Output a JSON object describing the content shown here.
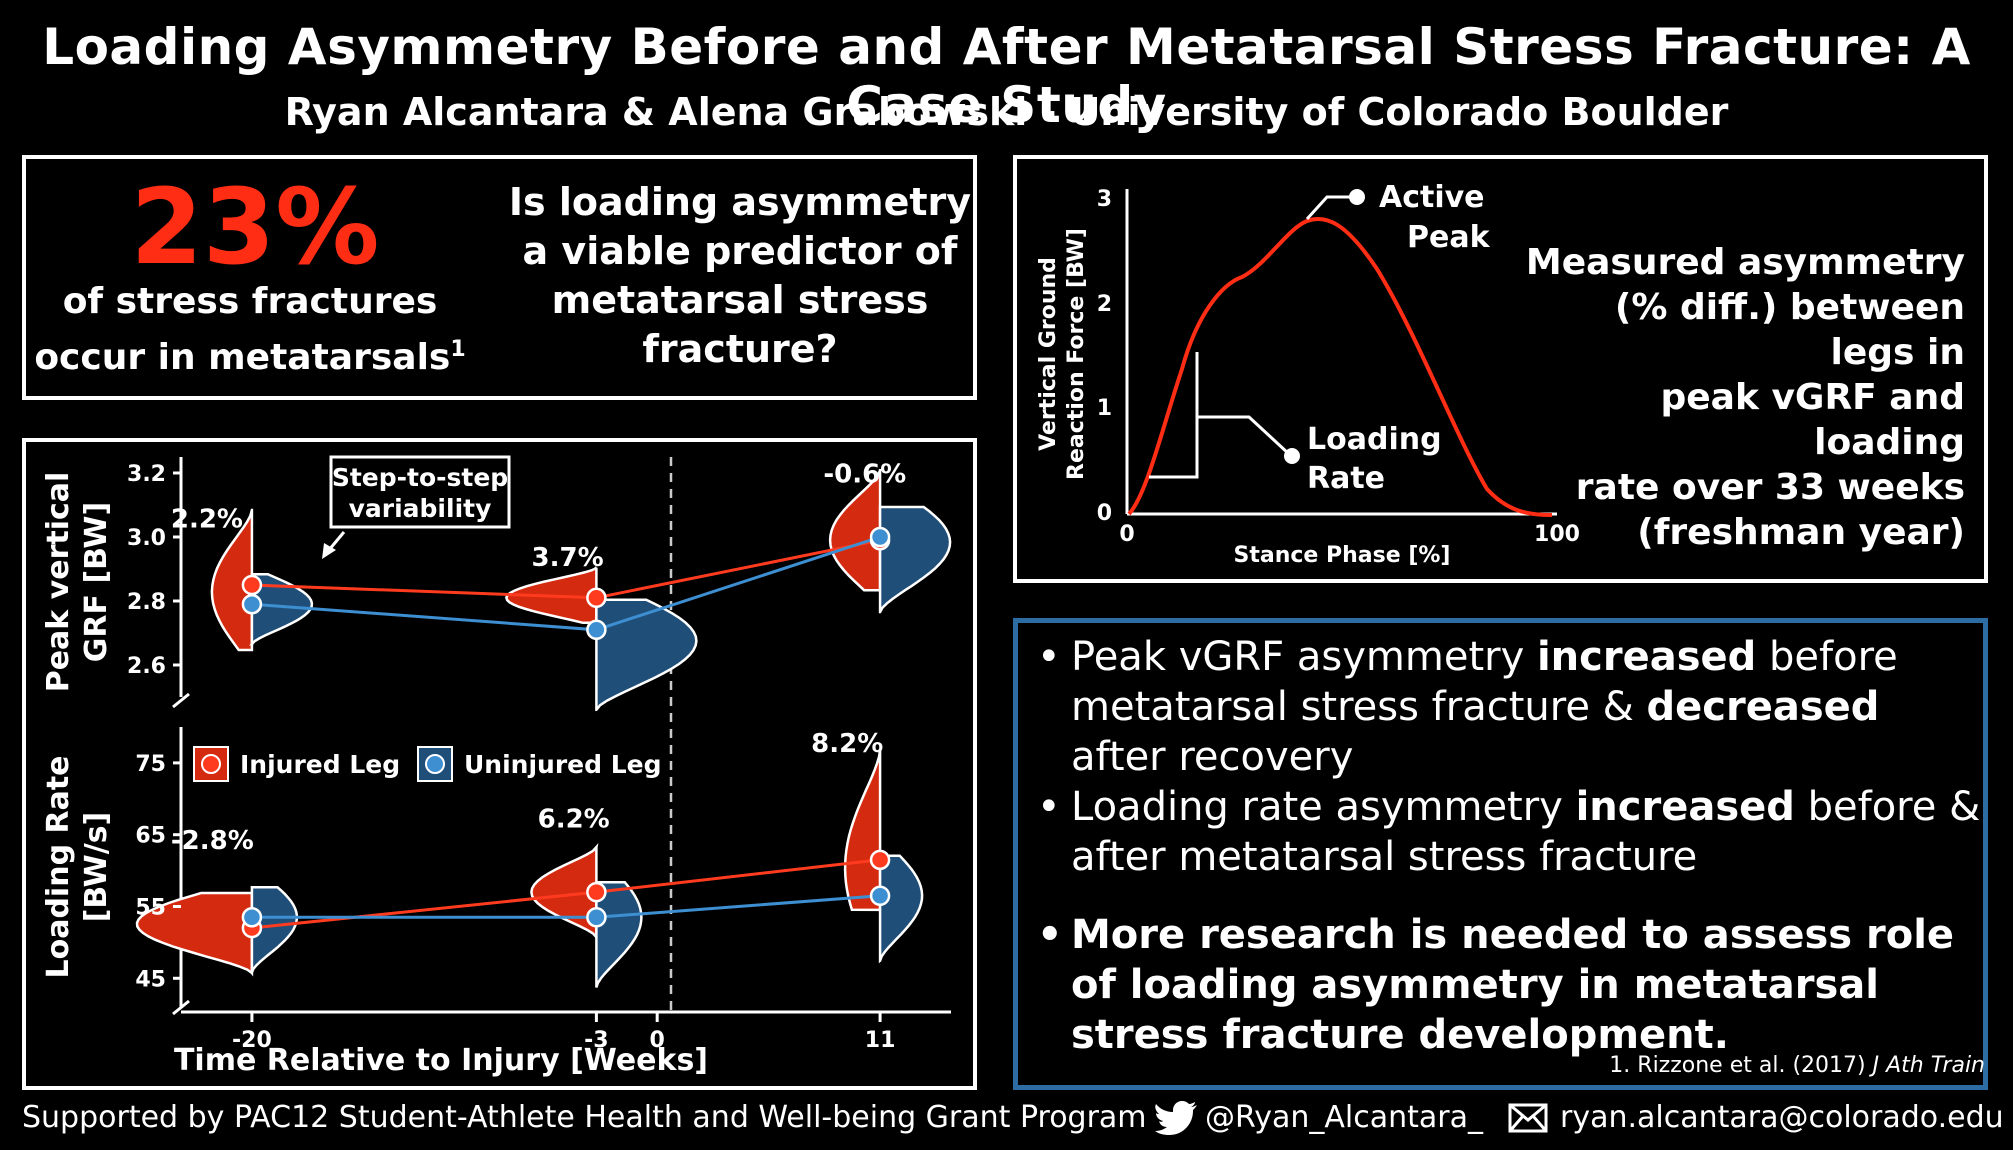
{
  "header": {
    "title": "Loading Asymmetry Before and After Metatarsal Stress Fracture: A Case Study",
    "authors": "Ryan Alcantara & Alena Grabowski - University of Colorado Boulder"
  },
  "intro": {
    "stat_value": "23%",
    "stat_line1": "of stress fractures",
    "stat_line2": "occur in metatarsals",
    "stat_sup": "1",
    "question_lines": [
      "Is loading asymmetry",
      "a viable predictor of",
      "metatarsal stress",
      "fracture?"
    ]
  },
  "grf_curve": {
    "ylabel_line1": "Vertical Ground",
    "ylabel_line2": "Reaction Force [BW]",
    "xlabel": "Stance Phase [%]",
    "yticks": [
      "0",
      "1",
      "2",
      "3"
    ],
    "xticks": [
      "0",
      "100"
    ],
    "active_peak_label": [
      "Active",
      "Peak"
    ],
    "loading_rate_label": [
      "Loading",
      "Rate"
    ]
  },
  "measured": {
    "lines": [
      "Measured asymmetry",
      "(% diff.) between legs in",
      "peak vGRF and loading",
      "rate over 33 weeks",
      "(freshman year)"
    ]
  },
  "findings": {
    "b1_a": "Peak vGRF asymmetry ",
    "b1_b": "increased",
    "b1_c": " before metatarsal stress fracture & ",
    "b1_d": "decreased",
    "b1_e": " after recovery",
    "b2_a": "Loading rate asymmetry ",
    "b2_b": "increased",
    "b2_c": " before & after metatarsal stress fracture",
    "b3": "More research is needed to assess role of loading asymmetry in metatarsal stress fracture development."
  },
  "reference": {
    "text": "1. Rizzone et al. (2017) ",
    "journal": "J Ath Train"
  },
  "footer": {
    "funding": "Supported by PAC12 Student-Athlete Health and Well-being Grant Program",
    "twitter": "@Ryan_Alcantara_",
    "email": "ryan.alcantara@colorado.edu"
  },
  "colors": {
    "injured": "#d42a10",
    "uninjured": "#1f4e79",
    "injured_dot": "#ff3b1f",
    "uninjured_dot": "#3d8fd1",
    "accent_box": "#2e6da4"
  },
  "chart_data": [
    {
      "type": "violin-line",
      "title": "Peak vertical GRF",
      "ylabel": "Peak vertical GRF [BW]",
      "xlabel": "Time Relative to Injury [Weeks]",
      "x": [
        -20,
        -3,
        11
      ],
      "ylim": [
        2.5,
        3.25
      ],
      "yticks": [
        2.6,
        2.8,
        3.0,
        3.2
      ],
      "ytick_labels": [
        "2.6",
        "2.8",
        "3.0",
        "3.2"
      ],
      "series": [
        {
          "name": "Injured Leg",
          "values": [
            2.85,
            2.81,
            2.99
          ]
        },
        {
          "name": "Uninjured Leg",
          "values": [
            2.79,
            2.71,
            3.0
          ]
        }
      ],
      "asymmetry_labels": [
        "2.2%",
        "3.7%",
        "-0.6%"
      ],
      "annotation": [
        "Step-to-step",
        "variability"
      ]
    },
    {
      "type": "violin-line",
      "title": "Loading Rate",
      "ylabel": "Loading Rate [BW/s]",
      "xlabel": "Time Relative to Injury [Weeks]",
      "x": [
        -20,
        -3,
        11
      ],
      "xticks": [
        -20,
        -3,
        0,
        11
      ],
      "xtick_labels": [
        "-20",
        "-3",
        "0",
        "11"
      ],
      "ylim": [
        41,
        80
      ],
      "yticks": [
        45,
        55,
        65,
        75
      ],
      "ytick_labels": [
        "45",
        "55",
        "65",
        "75"
      ],
      "series": [
        {
          "name": "Injured Leg",
          "values": [
            52,
            57,
            61.5
          ]
        },
        {
          "name": "Uninjured Leg",
          "values": [
            53.5,
            53.5,
            56.5
          ]
        }
      ],
      "asymmetry_labels": [
        "-2.8%",
        "6.2%",
        "8.2%"
      ],
      "legend": [
        "Injured Leg",
        "Uninjured Leg"
      ]
    }
  ]
}
